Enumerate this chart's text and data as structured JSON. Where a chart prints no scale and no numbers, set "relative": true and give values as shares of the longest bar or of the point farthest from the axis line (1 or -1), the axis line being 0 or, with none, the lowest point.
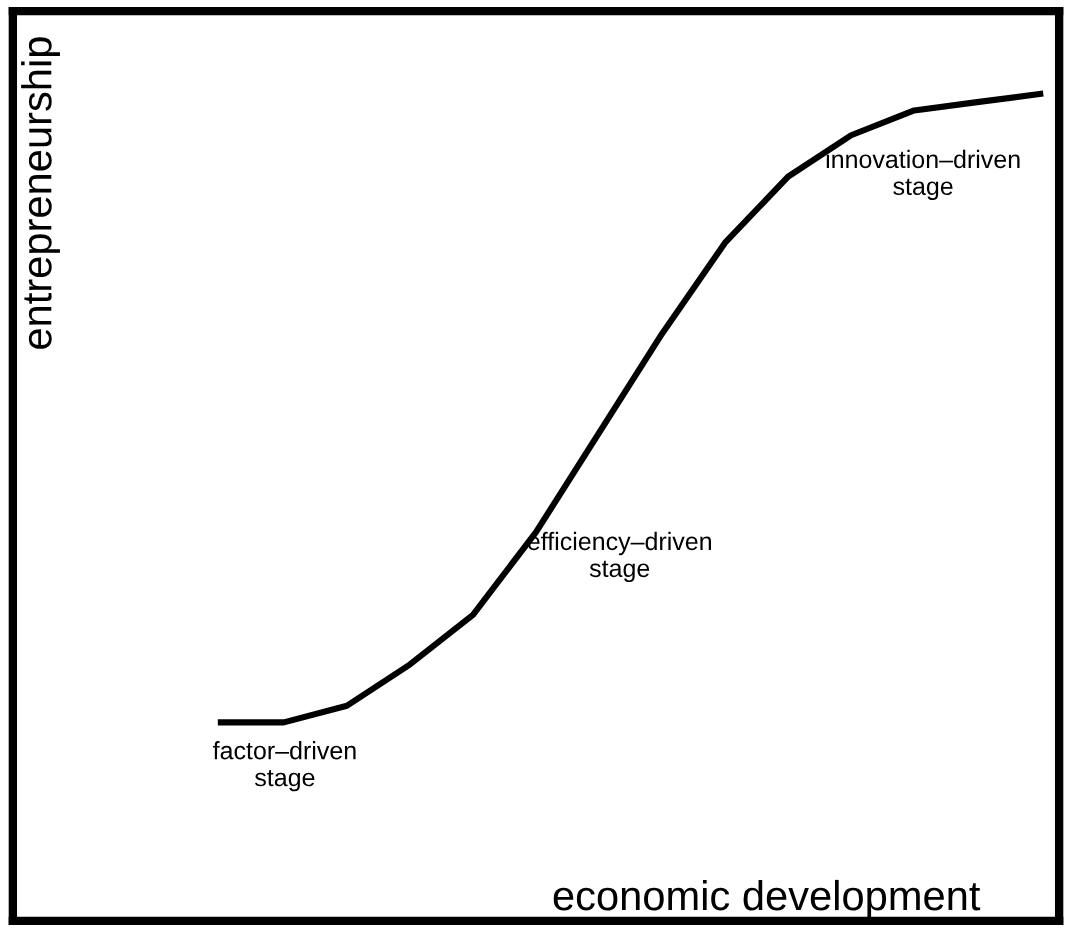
{
  "chart_data": {
    "type": "line",
    "relative": true,
    "categories": [
      null,
      null,
      null,
      null,
      null,
      null,
      null,
      null,
      null,
      null,
      null,
      null,
      null,
      null
    ],
    "series": [
      {
        "color": "#000000",
        "values": [
          0.24,
          0.24,
          0.26,
          0.31,
          0.37,
          0.47,
          0.59,
          0.71,
          0.82,
          0.9,
          0.95,
          0.98,
          0.99,
          1.0
        ]
      }
    ],
    "xlabel": "economic development",
    "ylabel": "entrepreneurship",
    "annotations": [
      "factor–driven\nstage",
      "efficiency–driven\nstage",
      "innovation–driven\nstage"
    ],
    "grid": false,
    "marker": "none",
    "line_style": "solid"
  }
}
